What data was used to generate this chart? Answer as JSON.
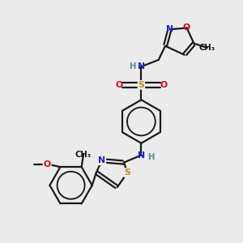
{
  "background_color": "#ebebeb",
  "bond_color": "#1a1a1a",
  "bond_width": 1.6,
  "figsize": [
    3.0,
    3.0
  ],
  "dpi": 100,
  "xlim": [
    0.0,
    10.0
  ],
  "ylim": [
    0.0,
    10.0
  ],
  "label_fontsize": 7.8,
  "atom_colors": {
    "N": "#2020d0",
    "O": "#cc1010",
    "S": "#b8960a",
    "H": "#5a8a8a",
    "C": "#1a1a1a"
  }
}
